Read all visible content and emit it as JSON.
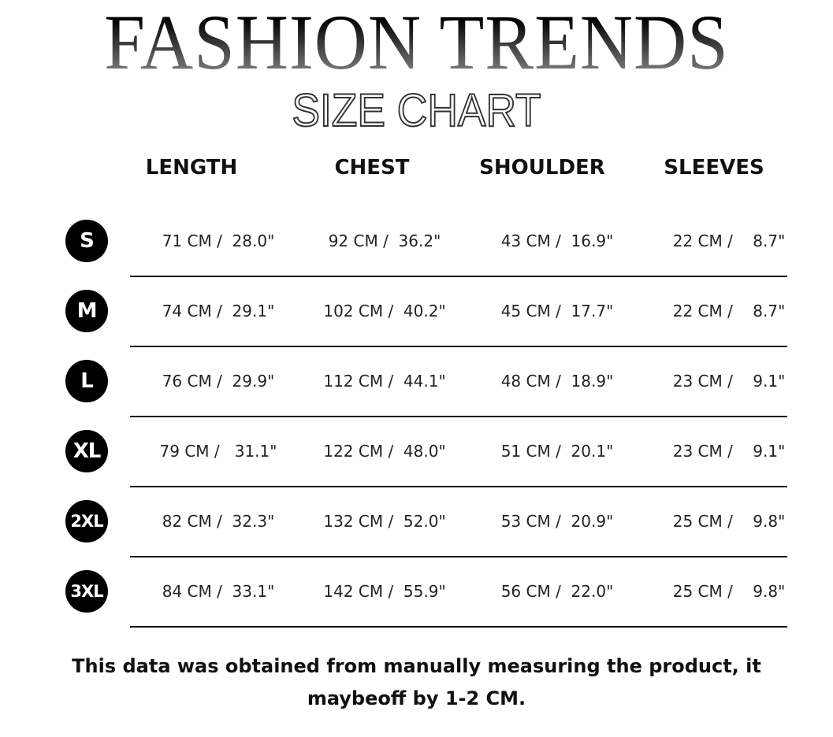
{
  "title": "FASHION TRENDS",
  "subtitle": "SIZE CHART",
  "headers": [
    "LENGTH",
    "CHEST",
    "SHOULDER",
    "SLEEVES"
  ],
  "rows": [
    {
      "size": "S",
      "values": [
        "71 CM /  28.0\"",
        "92 CM /  36.2\"",
        "43 CM /  16.9\"",
        "22 CM /    8.7\""
      ]
    },
    {
      "size": "M",
      "values": [
        "74 CM /  29.1\"",
        "102 CM /  40.2\"",
        "45 CM /  17.7\"",
        "22 CM /    8.7\""
      ]
    },
    {
      "size": "L",
      "values": [
        "76 CM /  29.9\"",
        "112 CM /  44.1\"",
        "48 CM /  18.9\"",
        "23 CM /    9.1\""
      ]
    },
    {
      "size": "XL",
      "values": [
        "79 CM /   31.1\"",
        "122 CM /  48.0\"",
        "51 CM /  20.1\"",
        "23 CM /    9.1\""
      ]
    },
    {
      "size": "2XL",
      "values": [
        "82 CM /  32.3\"",
        "132 CM /  52.0\"",
        "53 CM /  20.9\"",
        "25 CM /    9.8\""
      ]
    },
    {
      "size": "3XL",
      "values": [
        "84 CM /  33.1\"",
        "142 CM /  55.9\"",
        "56 CM /  22.0\"",
        "25 CM /    9.8\""
      ]
    }
  ],
  "note": "This data was obtained from manually measuring the product, it maybeoff by 1-2 CM."
}
